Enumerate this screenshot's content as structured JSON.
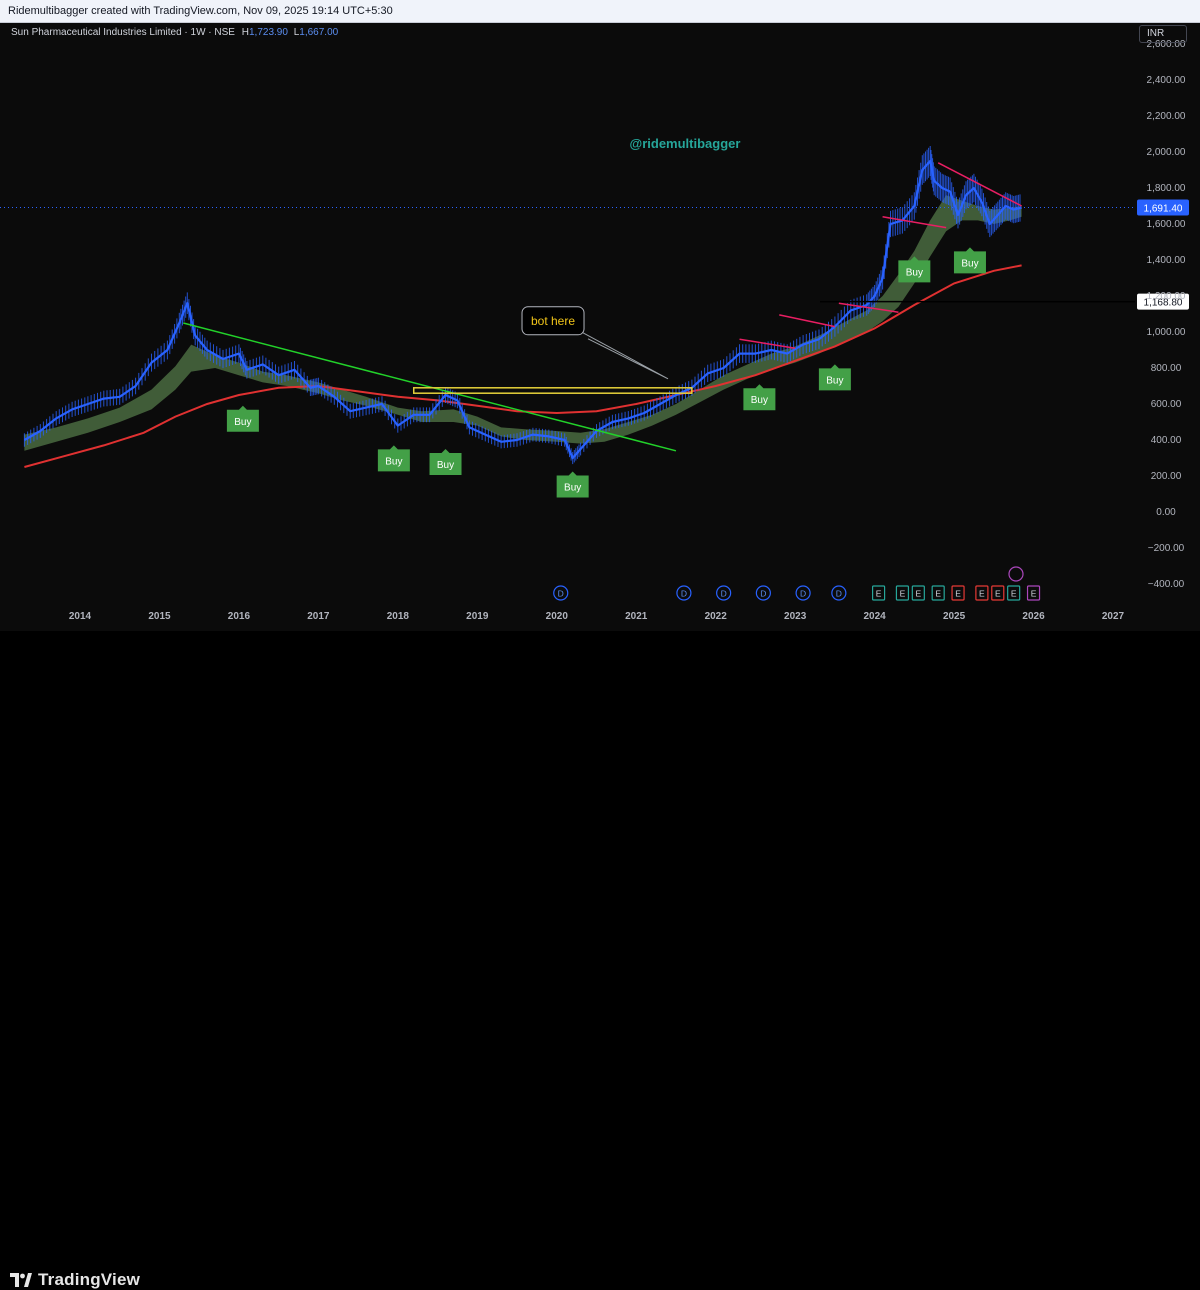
{
  "header": {
    "attribution": "Ridemultibagger created with TradingView.com, Nov 09, 2025 19:14 UTC+5:30"
  },
  "symbol": {
    "title": "Sun Pharmaceutical Industries Limited · 1W · NSE",
    "high_label": "H",
    "high_value": "1,723.90",
    "low_label": "L",
    "low_value": "1,667.00"
  },
  "currency": "INR",
  "watermark": "@ridemultibagger",
  "footer": {
    "brand": "TradingView"
  },
  "colors": {
    "price": "#2962ff",
    "cloud": "#4a6b41",
    "ma_red": "#e03131",
    "trend_green": "#22d12a",
    "trend_pink": "#e91e63",
    "buy_badge": "#43a047",
    "highlight_box": "#e6d13a",
    "current_price_tag": "#2962ff",
    "watermark": "#26a69a"
  },
  "chart_data": {
    "type": "line",
    "title": "Sun Pharmaceutical Industries Limited · 1W · NSE",
    "x_axis": {
      "type": "time",
      "tick_labels": [
        "2014",
        "2015",
        "2016",
        "2017",
        "2018",
        "2019",
        "2020",
        "2021",
        "2022",
        "2023",
        "2024",
        "2025",
        "2026",
        "2027"
      ],
      "range": [
        2013.3,
        2027.6
      ]
    },
    "y_axis": {
      "position": "right",
      "tick_labels": [
        "2,600.00",
        "2,400.00",
        "2,200.00",
        "2,000.00",
        "1,800.00",
        "1,600.00",
        "1,400.00",
        "1,200.00",
        "1,000.00",
        "800.00",
        "600.00",
        "400.00",
        "200.00",
        "0.00",
        "−200.00",
        "−400.00"
      ],
      "ticks": [
        2600,
        2400,
        2200,
        2000,
        1800,
        1600,
        1400,
        1200,
        1000,
        800,
        600,
        400,
        200,
        0,
        -200,
        -400
      ],
      "range": [
        -480,
        2680
      ]
    },
    "series": [
      {
        "kind": "price",
        "x": [
          2013.3,
          2013.5,
          2013.7,
          2013.9,
          2014.1,
          2014.3,
          2014.5,
          2014.7,
          2014.9,
          2015.1,
          2015.25,
          2015.35,
          2015.45,
          2015.6,
          2015.8,
          2016.0,
          2016.1,
          2016.3,
          2016.5,
          2016.7,
          2016.9,
          2017.0,
          2017.2,
          2017.4,
          2017.6,
          2017.8,
          2018.0,
          2018.2,
          2018.4,
          2018.6,
          2018.75,
          2018.9,
          2019.1,
          2019.3,
          2019.5,
          2019.7,
          2019.9,
          2020.1,
          2020.2,
          2020.3,
          2020.5,
          2020.7,
          2020.9,
          2021.1,
          2021.3,
          2021.5,
          2021.7,
          2021.9,
          2022.1,
          2022.3,
          2022.5,
          2022.7,
          2022.9,
          2023.1,
          2023.3,
          2023.5,
          2023.7,
          2023.9,
          2024.0,
          2024.1,
          2024.2,
          2024.35,
          2024.5,
          2024.6,
          2024.7,
          2024.75,
          2024.85,
          2024.95,
          2025.05,
          2025.15,
          2025.25,
          2025.35,
          2025.45,
          2025.55,
          2025.65,
          2025.75,
          2025.85
        ],
        "y": [
          400,
          450,
          520,
          570,
          600,
          630,
          640,
          700,
          830,
          900,
          1050,
          1160,
          980,
          900,
          850,
          880,
          790,
          820,
          760,
          790,
          690,
          700,
          640,
          560,
          580,
          600,
          480,
          540,
          540,
          650,
          620,
          470,
          430,
          390,
          400,
          430,
          420,
          400,
          300,
          350,
          450,
          500,
          520,
          550,
          600,
          650,
          690,
          770,
          800,
          880,
          880,
          900,
          880,
          930,
          960,
          1030,
          1120,
          1150,
          1200,
          1300,
          1600,
          1620,
          1700,
          1900,
          1950,
          1840,
          1800,
          1780,
          1650,
          1760,
          1800,
          1720,
          1600,
          1650,
          1700,
          1680,
          1691
        ]
      },
      {
        "kind": "cloud",
        "x": [
          2013.3,
          2013.7,
          2014.1,
          2014.5,
          2014.9,
          2015.2,
          2015.4,
          2015.7,
          2016.0,
          2016.3,
          2016.6,
          2017.0,
          2017.3,
          2017.6,
          2018.0,
          2018.3,
          2018.7,
          2019.0,
          2019.3,
          2019.6,
          2020.0,
          2020.3,
          2020.6,
          2020.9,
          2021.2,
          2021.5,
          2021.8,
          2022.1,
          2022.4,
          2022.7,
          2023.0,
          2023.3,
          2023.6,
          2023.9,
          2024.1,
          2024.3,
          2024.5,
          2024.7,
          2024.9,
          2025.1,
          2025.3,
          2025.5,
          2025.7,
          2025.85
        ],
        "upper": [
          430,
          470,
          520,
          580,
          680,
          810,
          930,
          870,
          830,
          780,
          760,
          720,
          680,
          640,
          580,
          560,
          570,
          530,
          470,
          460,
          450,
          440,
          460,
          500,
          540,
          600,
          680,
          760,
          820,
          880,
          920,
          980,
          1050,
          1120,
          1200,
          1320,
          1450,
          1620,
          1760,
          1730,
          1700,
          1680,
          1690,
          1700
        ],
        "lower": [
          340,
          390,
          440,
          500,
          570,
          680,
          780,
          800,
          760,
          720,
          700,
          660,
          620,
          590,
          540,
          500,
          500,
          480,
          420,
          400,
          390,
          380,
          390,
          430,
          480,
          540,
          610,
          680,
          740,
          790,
          830,
          880,
          940,
          1000,
          1060,
          1140,
          1270,
          1420,
          1560,
          1620,
          1620,
          1600,
          1620,
          1640
        ]
      },
      {
        "kind": "ma",
        "x": [
          2013.3,
          2013.8,
          2014.3,
          2014.8,
          2015.2,
          2015.6,
          2016.0,
          2016.5,
          2017.0,
          2017.5,
          2018.0,
          2018.5,
          2019.0,
          2019.5,
          2020.0,
          2020.5,
          2021.0,
          2021.5,
          2022.0,
          2022.5,
          2023.0,
          2023.5,
          2024.0,
          2024.5,
          2025.0,
          2025.5,
          2025.85
        ],
        "y": [
          250,
          310,
          370,
          440,
          530,
          600,
          650,
          690,
          700,
          670,
          640,
          620,
          590,
          560,
          550,
          560,
          600,
          650,
          700,
          760,
          840,
          920,
          1020,
          1150,
          1270,
          1340,
          1370
        ]
      }
    ],
    "trendlines": [
      {
        "name": "green-downtrend",
        "x": [
          2015.3,
          2021.5
        ],
        "y": [
          1050,
          340
        ]
      },
      {
        "name": "pink-2022",
        "x": [
          2022.3,
          2023.0
        ],
        "y": [
          960,
          910
        ]
      },
      {
        "name": "pink-2023a",
        "x": [
          2022.8,
          2023.5
        ],
        "y": [
          1095,
          1030
        ]
      },
      {
        "name": "pink-2023b",
        "x": [
          2023.55,
          2024.3
        ],
        "y": [
          1160,
          1110
        ]
      },
      {
        "name": "pink-2024",
        "x": [
          2024.1,
          2024.9
        ],
        "y": [
          1640,
          1580
        ]
      },
      {
        "name": "pink-2025",
        "x": [
          2024.8,
          2025.85
        ],
        "y": [
          1940,
          1700
        ]
      }
    ],
    "horizontal_levels": [
      {
        "value": 1168.8,
        "label": "1,168.80"
      },
      {
        "value": 1691.4,
        "label": "1,691.40",
        "kind": "current_price"
      }
    ],
    "rectangle": {
      "x0": 2018.2,
      "x1": 2021.7,
      "y0": 660,
      "y1": 690
    },
    "callout": {
      "text": "bot here",
      "target_x": 2021.4,
      "target_y": 740
    },
    "buy_signals": [
      {
        "x": 2016.05,
        "y": 590,
        "text": "Buy"
      },
      {
        "x": 2017.95,
        "y": 370,
        "text": "Buy"
      },
      {
        "x": 2018.6,
        "y": 350,
        "text": "Buy"
      },
      {
        "x": 2020.2,
        "y": 225,
        "text": "Buy"
      },
      {
        "x": 2022.55,
        "y": 710,
        "text": "Buy"
      },
      {
        "x": 2023.5,
        "y": 820,
        "text": "Buy"
      },
      {
        "x": 2024.5,
        "y": 1420,
        "text": "Buy"
      },
      {
        "x": 2025.2,
        "y": 1470,
        "text": "Buy"
      }
    ],
    "events": [
      {
        "x": 2020.05,
        "text": "D"
      },
      {
        "x": 2021.6,
        "text": "D"
      },
      {
        "x": 2022.1,
        "text": "D"
      },
      {
        "x": 2022.6,
        "text": "D"
      },
      {
        "x": 2023.1,
        "text": "D"
      },
      {
        "x": 2023.55,
        "text": "D"
      },
      {
        "x": 2024.05,
        "text": "E"
      },
      {
        "x": 2024.35,
        "text": "E"
      },
      {
        "x": 2024.55,
        "text": "E"
      },
      {
        "x": 2024.8,
        "text": "E"
      },
      {
        "x": 2025.05,
        "text": "E"
      },
      {
        "x": 2025.35,
        "text": "E"
      },
      {
        "x": 2025.55,
        "text": "E"
      },
      {
        "x": 2025.75,
        "text": "E"
      },
      {
        "x": 2026.0,
        "text": "E"
      }
    ],
    "legend": "none",
    "grid": false
  }
}
